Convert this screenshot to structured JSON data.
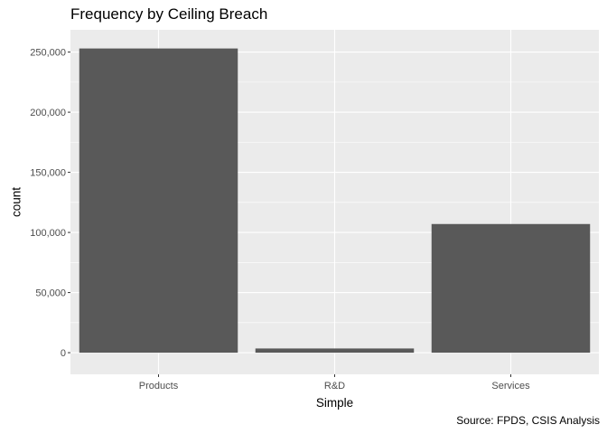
{
  "chart_data": {
    "type": "bar",
    "title": "Frequency by Ceiling Breach",
    "caption": "Source: FPDS, CSIS Analysis",
    "xlabel": "Simple",
    "ylabel": "count",
    "categories": [
      "Products",
      "R&D",
      "Services"
    ],
    "values": [
      253000,
      3500,
      107000
    ],
    "ylim": [
      -18000,
      268500
    ],
    "yticks": [
      0,
      50000,
      100000,
      150000,
      200000,
      250000
    ],
    "ytick_labels": [
      "0",
      "50,000",
      "100,000",
      "150,000",
      "200,000",
      "250,000"
    ],
    "grid": true,
    "colors": {
      "panel": "#EBEBEB",
      "grid": "#FFFFFF",
      "bar": "#595959"
    }
  }
}
